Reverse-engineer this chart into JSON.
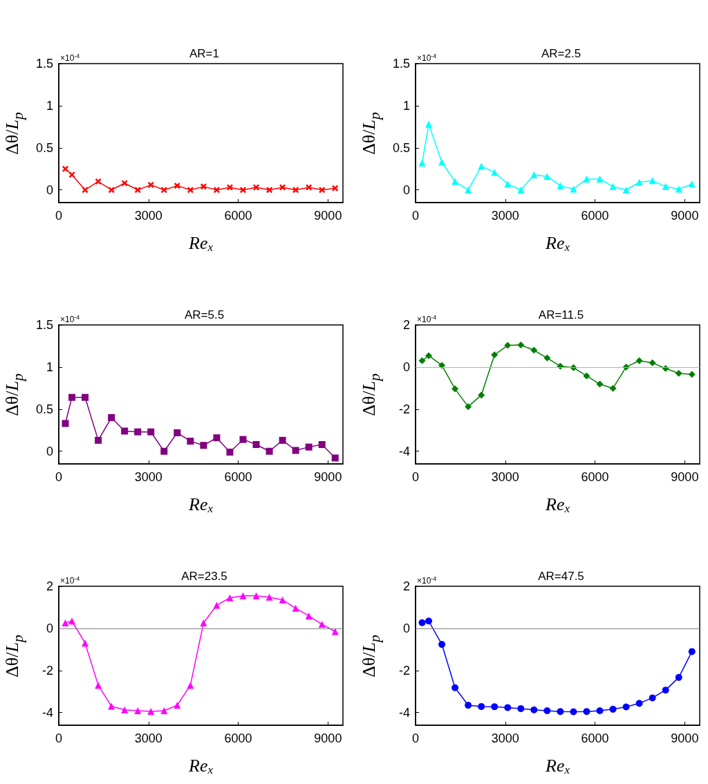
{
  "chart_data": [
    {
      "type": "line",
      "title": "AR=1",
      "xlabel": "Re$_{x}$",
      "ylabel": "Δθ/L$_{p}$",
      "annotations": [
        "×10$^{-4}$"
      ],
      "marker": "cross",
      "line_style": "solid",
      "grid": false,
      "x": [
        220,
        440,
        880,
        1320,
        1760,
        2200,
        2640,
        3080,
        3520,
        3960,
        4400,
        4840,
        5280,
        5720,
        6160,
        6600,
        7040,
        7480,
        7920,
        8360,
        8800,
        9240
      ],
      "xlim": [
        0,
        9500
      ],
      "xticks": [
        0,
        3000,
        6000,
        9000
      ],
      "ylim": [
        -0.15,
        1.5
      ],
      "yticks": [
        0,
        0.5,
        1,
        1.5
      ],
      "series": [
        {
          "color": "#ff0000",
          "values": [
            0.25,
            0.18,
            0,
            0.1,
            0,
            0.08,
            0,
            0.06,
            0,
            0.05,
            0,
            0.04,
            0,
            0.03,
            0,
            0.03,
            0,
            0.03,
            0,
            0.03,
            0,
            0.02
          ]
        }
      ]
    },
    {
      "type": "line",
      "title": "AR=2.5",
      "xlabel": "Re$_{x}$",
      "ylabel": "Δθ/L$_{p}$",
      "annotations": [
        "×10$^{-4}$"
      ],
      "marker": "triangle",
      "line_style": "solid",
      "grid": false,
      "x": [
        220,
        440,
        880,
        1320,
        1760,
        2200,
        2640,
        3080,
        3520,
        3960,
        4400,
        4840,
        5280,
        5720,
        6160,
        6600,
        7040,
        7480,
        7920,
        8360,
        8800,
        9240
      ],
      "xlim": [
        0,
        9500
      ],
      "xticks": [
        0,
        3000,
        6000,
        9000
      ],
      "ylim": [
        -0.15,
        1.5
      ],
      "yticks": [
        0,
        0.5,
        1,
        1.5
      ],
      "series": [
        {
          "color": "#00ffff",
          "values": [
            0.32,
            0.78,
            0.33,
            0.1,
            0,
            0.28,
            0.21,
            0.07,
            0,
            0.18,
            0.16,
            0.05,
            0.01,
            0.13,
            0.13,
            0.04,
            0,
            0.09,
            0.11,
            0.04,
            0.01,
            0.07
          ]
        }
      ]
    },
    {
      "type": "line",
      "title": "AR=5.5",
      "xlabel": "Re$_{x}$",
      "ylabel": "Δθ/L$_{p}$",
      "annotations": [
        "×10$^{-4}$"
      ],
      "marker": "square",
      "line_style": "solid",
      "grid": false,
      "x": [
        220,
        440,
        880,
        1320,
        1760,
        2200,
        2640,
        3080,
        3520,
        3960,
        4400,
        4840,
        5280,
        5720,
        6160,
        6600,
        7040,
        7480,
        7920,
        8360,
        8800,
        9240
      ],
      "xlim": [
        0,
        9500
      ],
      "xticks": [
        0,
        3000,
        6000,
        9000
      ],
      "ylim": [
        -0.15,
        1.5
      ],
      "yticks": [
        0,
        0.5,
        1,
        1.5
      ],
      "series": [
        {
          "color": "#800080",
          "values": [
            0.33,
            0.64,
            0.64,
            0.13,
            0.4,
            0.24,
            0.23,
            0.23,
            0,
            0.22,
            0.12,
            0.07,
            0.16,
            -0.01,
            0.14,
            0.08,
            0,
            0.13,
            0.01,
            0.05,
            0.08,
            -0.08
          ]
        }
      ]
    },
    {
      "type": "line",
      "title": "AR=11.5",
      "xlabel": "Re$_{x}$",
      "ylabel": "Δθ/L$_{p}$",
      "annotations": [
        "×10$^{-4}$"
      ],
      "marker": "diamond",
      "line_style": "solid",
      "grid": false,
      "x": [
        220,
        440,
        880,
        1320,
        1760,
        2200,
        2640,
        3080,
        3520,
        3960,
        4400,
        4840,
        5280,
        5720,
        6160,
        6600,
        7040,
        7480,
        7920,
        8360,
        8800,
        9240
      ],
      "xlim": [
        0,
        9500
      ],
      "xticks": [
        0,
        3000,
        6000,
        9000
      ],
      "ylim": [
        -4.6,
        2
      ],
      "yticks": [
        -4,
        -2,
        0,
        2
      ],
      "ref_lines": [
        {
          "axis": "y",
          "value": 0,
          "color": "#b0b0b0"
        }
      ],
      "series": [
        {
          "color": "#008000",
          "values": [
            0.3,
            0.54,
            0.08,
            -1.04,
            -1.88,
            -1.33,
            0.58,
            1.03,
            1.05,
            0.8,
            0.43,
            0.04,
            -0.03,
            -0.42,
            -0.81,
            -1.01,
            0,
            0.3,
            0.2,
            -0.07,
            -0.3,
            -0.35
          ]
        }
      ]
    },
    {
      "type": "line",
      "title": "AR=23.5",
      "xlabel": "Re$_{x}$",
      "ylabel": "Δθ/L$_{p}$",
      "annotations": [
        "×10$^{-4}$"
      ],
      "marker": "triangle",
      "line_style": "solid",
      "grid": false,
      "x": [
        220,
        440,
        880,
        1320,
        1760,
        2200,
        2640,
        3080,
        3520,
        3960,
        4400,
        4840,
        5280,
        5720,
        6160,
        6600,
        7040,
        7480,
        7920,
        8360,
        8800,
        9240
      ],
      "xlim": [
        0,
        9500
      ],
      "xticks": [
        0,
        3000,
        6000,
        9000
      ],
      "ylim": [
        -4.6,
        2
      ],
      "yticks": [
        -4,
        -2,
        0,
        2
      ],
      "ref_lines": [
        {
          "axis": "y",
          "value": 0,
          "color": "#808080"
        }
      ],
      "series": [
        {
          "color": "#ff00ff",
          "values": [
            0.26,
            0.35,
            -0.7,
            -2.7,
            -3.7,
            -3.87,
            -3.91,
            -3.94,
            -3.91,
            -3.65,
            -2.7,
            0.26,
            1.1,
            1.45,
            1.55,
            1.55,
            1.48,
            1.35,
            0.96,
            0.59,
            0.19,
            -0.15
          ]
        }
      ]
    },
    {
      "type": "line",
      "title": "AR=47.5",
      "xlabel": "Re$_{x}$",
      "ylabel": "Δθ/L$_{p}$",
      "annotations": [
        "×10$^{-4}$"
      ],
      "marker": "circle",
      "line_style": "solid",
      "grid": false,
      "x": [
        220,
        440,
        880,
        1320,
        1760,
        2200,
        2640,
        3080,
        3520,
        3960,
        4400,
        4840,
        5280,
        5720,
        6160,
        6600,
        7040,
        7480,
        7920,
        8360,
        8800,
        9240
      ],
      "xlim": [
        0,
        9500
      ],
      "xticks": [
        0,
        3000,
        6000,
        9000
      ],
      "ylim": [
        -4.6,
        2
      ],
      "yticks": [
        -4,
        -2,
        0,
        2
      ],
      "ref_lines": [
        {
          "axis": "y",
          "value": 0,
          "color": "#808080"
        }
      ],
      "series": [
        {
          "color": "#0000ff",
          "values": [
            0.27,
            0.35,
            -0.76,
            -2.82,
            -3.65,
            -3.71,
            -3.72,
            -3.76,
            -3.81,
            -3.87,
            -3.91,
            -3.95,
            -3.96,
            -3.95,
            -3.91,
            -3.84,
            -3.73,
            -3.56,
            -3.3,
            -2.93,
            -2.33,
            -1.1
          ]
        }
      ]
    }
  ]
}
